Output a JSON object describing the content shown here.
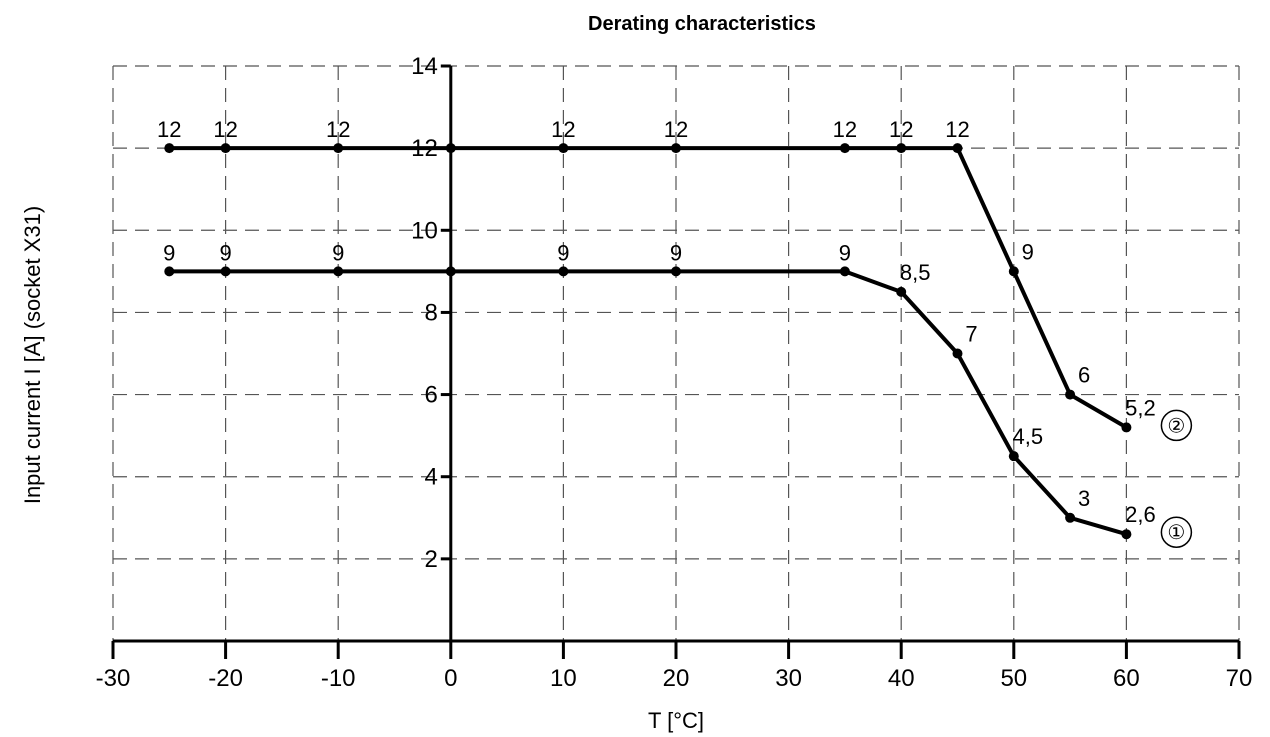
{
  "chart_data": {
    "type": "line",
    "title": "Derating characteristics",
    "xlabel": "T [°C]",
    "ylabel": "Input current I [A] (socket X31)",
    "xlim": [
      -30,
      70
    ],
    "ylim": [
      0,
      14
    ],
    "x_ticks": [
      "-30",
      "-20",
      "-10",
      "0",
      "10",
      "20",
      "30",
      "40",
      "50",
      "60",
      "70"
    ],
    "y_ticks": [
      "2",
      "4",
      "6",
      "8",
      "10",
      "12",
      "14"
    ],
    "grid": true,
    "series": [
      {
        "name": "②",
        "points": [
          {
            "x": -25,
            "y": 12,
            "label": "12"
          },
          {
            "x": -20,
            "y": 12,
            "label": "12"
          },
          {
            "x": -10,
            "y": 12,
            "label": "12"
          },
          {
            "x": 0,
            "y": 12,
            "label": ""
          },
          {
            "x": 10,
            "y": 12,
            "label": "12"
          },
          {
            "x": 20,
            "y": 12,
            "label": "12"
          },
          {
            "x": 35,
            "y": 12,
            "label": "12"
          },
          {
            "x": 40,
            "y": 12,
            "label": "12"
          },
          {
            "x": 45,
            "y": 12,
            "label": "12"
          },
          {
            "x": 50,
            "y": 9,
            "label": "9"
          },
          {
            "x": 55,
            "y": 6,
            "label": "6"
          },
          {
            "x": 60,
            "y": 5.2,
            "label": "5,2"
          }
        ]
      },
      {
        "name": "①",
        "points": [
          {
            "x": -25,
            "y": 9,
            "label": "9"
          },
          {
            "x": -20,
            "y": 9,
            "label": "9"
          },
          {
            "x": -10,
            "y": 9,
            "label": "9"
          },
          {
            "x": 0,
            "y": 9,
            "label": ""
          },
          {
            "x": 10,
            "y": 9,
            "label": "9"
          },
          {
            "x": 20,
            "y": 9,
            "label": "9"
          },
          {
            "x": 35,
            "y": 9,
            "label": "9"
          },
          {
            "x": 40,
            "y": 8.5,
            "label": "8,5"
          },
          {
            "x": 45,
            "y": 7,
            "label": "7"
          },
          {
            "x": 50,
            "y": 4.5,
            "label": "4,5"
          },
          {
            "x": 55,
            "y": 3,
            "label": "3"
          },
          {
            "x": 60,
            "y": 2.6,
            "label": "2,6"
          }
        ]
      }
    ]
  }
}
